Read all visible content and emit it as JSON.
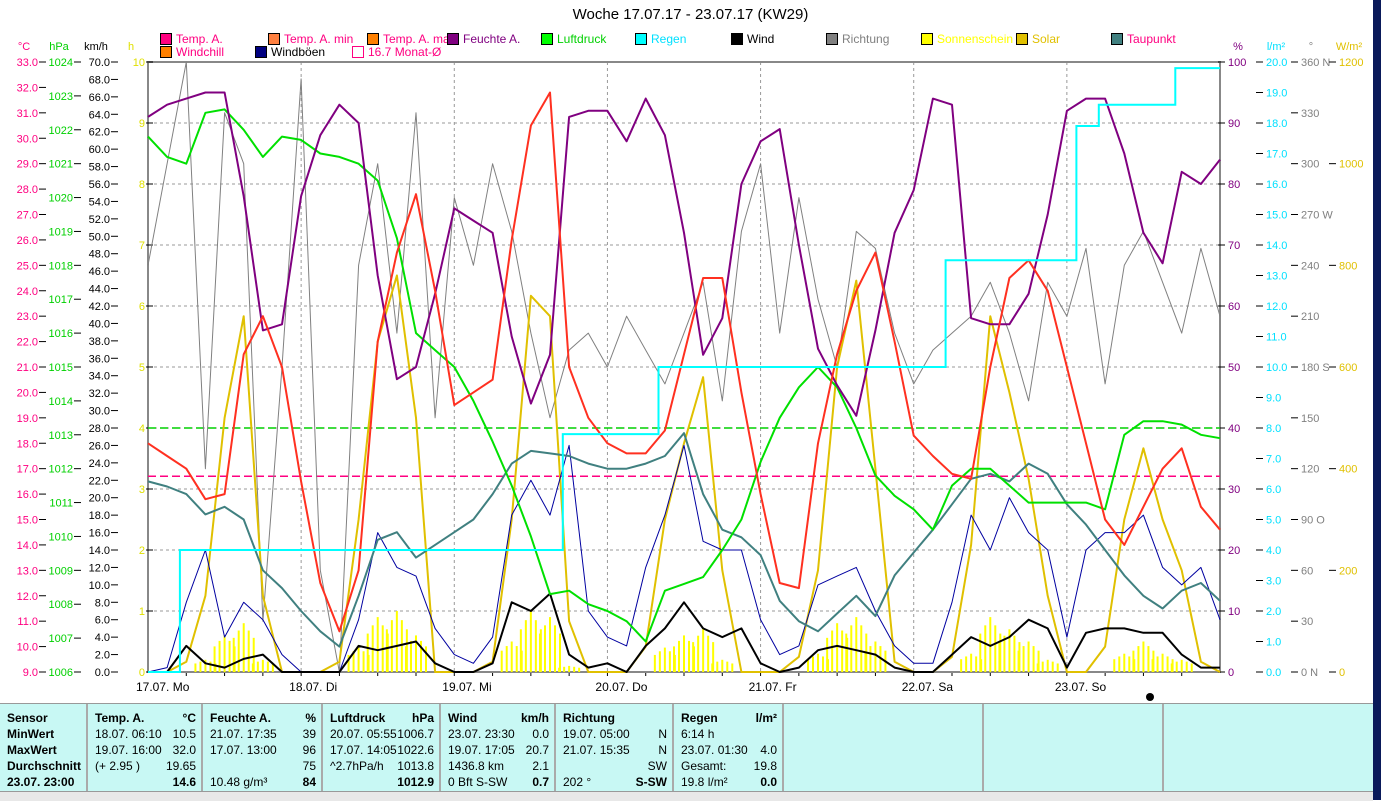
{
  "title": "Woche 17.07.17 - 23.07.17 (KW29)",
  "legend": [
    {
      "label": "Temp. A.",
      "color": "#ff0080",
      "text_color": "#ff0080"
    },
    {
      "label": "Temp. A. min",
      "color": "#ff8040",
      "text_color": "#ff0080"
    },
    {
      "label": "Temp. A. max",
      "color": "#ff8000",
      "text_color": "#ff0080"
    },
    {
      "label": "Feuchte A.",
      "color": "#800080",
      "text_color": "#800080"
    },
    {
      "label": "Luftdruck",
      "color": "#00ff00",
      "text_color": "#00d000"
    },
    {
      "label": "Regen",
      "color": "#00ffff",
      "text_color": "#00e0ff"
    },
    {
      "label": "Wind",
      "color": "#000000",
      "text_color": "#000000"
    },
    {
      "label": "Richtung",
      "color": "#808080",
      "text_color": "#808080"
    },
    {
      "label": "Sonnenschein",
      "color": "#ffff00",
      "text_color": "#ffff00"
    },
    {
      "label": "Solar",
      "color": "#e0c000",
      "text_color": "#e0c000"
    },
    {
      "label": "Taupunkt",
      "color": "#408080",
      "text_color": "#ff0080"
    },
    {
      "label": "Windchill",
      "color": "#ff8000",
      "text_color": "#ff0080"
    },
    {
      "label": "Windböen",
      "color": "#000080",
      "text_color": "#000000"
    },
    {
      "label": "16.7 Monat-Ø",
      "color": "outline",
      "text_color": "#ff0080"
    }
  ],
  "chart_data": {
    "type": "line",
    "title": "Woche 17.07.17 - 23.07.17 (KW29)",
    "x_tick_labels": [
      "17.07. Mo",
      "18.07. Di",
      "19.07. Mi",
      "20.07. Do",
      "21.07. Fr",
      "22.07. Sa",
      "23.07. So"
    ],
    "axes": {
      "temp": {
        "unit": "°C",
        "range": [
          9,
          33
        ],
        "step": 1,
        "color": "#ff0080"
      },
      "pressure": {
        "unit": "hPa",
        "range": [
          1006,
          1024
        ],
        "step": 1,
        "color": "#00d000"
      },
      "wind": {
        "unit": "km/h",
        "range": [
          0,
          70
        ],
        "step": 2,
        "color": "#000000"
      },
      "sunshine": {
        "unit": "h",
        "range": [
          0,
          10
        ],
        "step": 1,
        "color": "#e0e000"
      },
      "humidity": {
        "unit": "%",
        "range": [
          0,
          100
        ],
        "step": 10,
        "color": "#800080"
      },
      "rain": {
        "unit": "l/m²",
        "range": [
          0,
          20
        ],
        "step": 1,
        "color": "#00e0ff"
      },
      "direction": {
        "unit": "°",
        "range": [
          0,
          360
        ],
        "step": 30,
        "labels": {
          "0": "N",
          "90": "O",
          "180": "S",
          "270": "W",
          "360": "N"
        },
        "color": "#808080"
      },
      "solar": {
        "unit": "W/m²",
        "range": [
          0,
          1200
        ],
        "step": 200,
        "color": "#e0c000"
      }
    },
    "grid": true,
    "reference_lines": [
      {
        "axis": "temp",
        "value": 16.7,
        "color": "#ff0080",
        "name": "16.7 Monat-Ø"
      },
      {
        "axis": "pressure",
        "value": 1013.2,
        "color": "#00d000"
      }
    ],
    "times": [
      "17.07. 00:00",
      "17.07. 03:00",
      "17.07. 06:00",
      "17.07. 09:00",
      "17.07. 12:00",
      "17.07. 15:00",
      "17.07. 18:00",
      "17.07. 21:00",
      "18.07. 00:00",
      "18.07. 03:00",
      "18.07. 06:00",
      "18.07. 09:00",
      "18.07. 12:00",
      "18.07. 15:00",
      "18.07. 18:00",
      "18.07. 21:00",
      "19.07. 00:00",
      "19.07. 03:00",
      "19.07. 06:00",
      "19.07. 09:00",
      "19.07. 12:00",
      "19.07. 15:00",
      "19.07. 18:00",
      "19.07. 21:00",
      "20.07. 00:00",
      "20.07. 03:00",
      "20.07. 06:00",
      "20.07. 09:00",
      "20.07. 12:00",
      "20.07. 15:00",
      "20.07. 18:00",
      "20.07. 21:00",
      "21.07. 00:00",
      "21.07. 03:00",
      "21.07. 06:00",
      "21.07. 09:00",
      "21.07. 12:00",
      "21.07. 15:00",
      "21.07. 18:00",
      "21.07. 21:00",
      "22.07. 00:00",
      "22.07. 03:00",
      "22.07. 06:00",
      "22.07. 09:00",
      "22.07. 12:00",
      "22.07. 15:00",
      "22.07. 18:00",
      "22.07. 21:00",
      "23.07. 00:00",
      "23.07. 03:00",
      "23.07. 06:00",
      "23.07. 09:00",
      "23.07. 12:00",
      "23.07. 15:00",
      "23.07. 18:00",
      "23.07. 21:00",
      "24.07. 00:00"
    ],
    "series": [
      {
        "name": "Richtung",
        "axis": "direction",
        "color": "#808080",
        "width": 1,
        "values": [
          240,
          300,
          360,
          120,
          330,
          300,
          30,
          180,
          350,
          60,
          0,
          240,
          300,
          200,
          330,
          150,
          280,
          240,
          300,
          260,
          200,
          150,
          190,
          200,
          180,
          210,
          190,
          170,
          200,
          230,
          160,
          260,
          300,
          200,
          280,
          220,
          180,
          260,
          250,
          200,
          170,
          190,
          200,
          210,
          230,
          200,
          160,
          230,
          210,
          250,
          170,
          240,
          260,
          230,
          200,
          250,
          210
        ]
      },
      {
        "name": "Solar",
        "axis": "solar",
        "color": "#e0c000",
        "width": 2,
        "values": [
          0,
          0,
          20,
          150,
          500,
          700,
          150,
          0,
          0,
          0,
          20,
          300,
          650,
          780,
          500,
          0,
          0,
          0,
          20,
          300,
          740,
          700,
          100,
          0,
          0,
          0,
          50,
          300,
          450,
          580,
          200,
          0,
          0,
          0,
          30,
          200,
          600,
          770,
          400,
          20,
          0,
          0,
          30,
          250,
          700,
          550,
          380,
          150,
          0,
          0,
          50,
          300,
          440,
          300,
          200,
          20,
          0
        ]
      },
      {
        "name": "Sonnenschein",
        "axis": "sunshine",
        "color": "#ffff00",
        "bars": true,
        "values": [
          0,
          0,
          0,
          0.2,
          0.6,
          0.8,
          0.2,
          0,
          0,
          0,
          0,
          0.4,
          0.9,
          1.0,
          0.6,
          0,
          0,
          0,
          0,
          0.5,
          1.0,
          0.9,
          0.1,
          0,
          0,
          0,
          0,
          0.4,
          0.6,
          0.7,
          0.2,
          0,
          0,
          0,
          0,
          0.3,
          0.8,
          0.9,
          0.5,
          0,
          0,
          0,
          0,
          0.3,
          0.9,
          0.7,
          0.5,
          0.2,
          0,
          0,
          0,
          0.3,
          0.5,
          0.3,
          0.2,
          0,
          0
        ]
      },
      {
        "name": "Windböen",
        "axis": "wind",
        "color": "#0000a0",
        "width": 1,
        "values": [
          0,
          0.5,
          8,
          14,
          4,
          8,
          6,
          2,
          0,
          0,
          0,
          6,
          16,
          12,
          11,
          5,
          2,
          1,
          4,
          18,
          22,
          18,
          26,
          7,
          4,
          3,
          12,
          18,
          26,
          15,
          14,
          14,
          6,
          2,
          3,
          10,
          11,
          12,
          7,
          3,
          1,
          1,
          8,
          18,
          14,
          20,
          16,
          14,
          4,
          14,
          16,
          16,
          18,
          12,
          10,
          12,
          6
        ]
      },
      {
        "name": "Wind",
        "axis": "wind",
        "color": "#000000",
        "width": 2,
        "values": [
          0,
          0,
          3,
          1,
          0.5,
          1.5,
          2,
          0,
          0,
          0,
          0,
          3,
          2.5,
          3,
          3.5,
          1,
          0,
          0,
          1,
          8,
          7,
          9,
          2,
          0.5,
          1,
          0,
          3,
          5,
          8,
          5,
          4,
          5,
          1,
          0,
          0.5,
          2.5,
          3,
          2.5,
          2,
          0.5,
          0,
          0,
          2,
          4,
          3,
          4,
          6,
          5,
          0.5,
          4.5,
          5,
          5,
          4.5,
          4.5,
          2,
          0.5,
          0.5
        ]
      },
      {
        "name": "Taupunkt",
        "axis": "temp",
        "color": "#408080",
        "width": 2,
        "values": [
          16.5,
          16.3,
          16,
          15.2,
          15.5,
          15,
          13,
          12.3,
          11.4,
          10.6,
          10,
          12,
          14.2,
          14.5,
          13.5,
          14,
          14.5,
          15,
          16,
          17.2,
          17.7,
          17.6,
          17.5,
          17.2,
          17,
          17,
          17.2,
          17.5,
          18.4,
          16,
          14.6,
          14.3,
          13.6,
          11.8,
          11,
          10.6,
          11.3,
          12,
          11.2,
          12.8,
          13.7,
          14.6,
          15.6,
          16.6,
          16.8,
          16.5,
          17.2,
          16.8,
          15.6,
          14.8,
          13.8,
          12.8,
          12,
          11.5,
          12.2,
          12.5,
          11.8
        ]
      },
      {
        "name": "Luftdruck",
        "axis": "pressure",
        "color": "#00e000",
        "width": 2,
        "values": [
          1021.8,
          1021.2,
          1021,
          1022.5,
          1022.6,
          1022,
          1021.2,
          1021.8,
          1021.7,
          1021.3,
          1021.2,
          1021,
          1020.5,
          1018.8,
          1016,
          1015.5,
          1015,
          1014,
          1012.8,
          1011.5,
          1010,
          1008.3,
          1008.4,
          1008,
          1007.8,
          1007.5,
          1006.9,
          1008.4,
          1008.6,
          1008.8,
          1009.6,
          1010.5,
          1012.2,
          1013.5,
          1014.4,
          1015,
          1014.4,
          1013.2,
          1011.8,
          1011.2,
          1010.8,
          1010.2,
          1011.5,
          1012,
          1012,
          1011.5,
          1011,
          1011,
          1011,
          1011,
          1010.8,
          1013,
          1013.4,
          1013.4,
          1013.3,
          1013,
          1012.9
        ]
      },
      {
        "name": "Feuchte A.",
        "axis": "humidity",
        "color": "#800080",
        "width": 2,
        "values": [
          91,
          93,
          94,
          95,
          95,
          78,
          56,
          57,
          78,
          88,
          93,
          90,
          65,
          48,
          50,
          62,
          76,
          74,
          72,
          55,
          44,
          52,
          91,
          92,
          92,
          87,
          94,
          88,
          72,
          52,
          58,
          80,
          87,
          89,
          70,
          53,
          47,
          42,
          56,
          72,
          79,
          94,
          93,
          58,
          57,
          57,
          62,
          75,
          92,
          94,
          94,
          85,
          72,
          67,
          82,
          80,
          84
        ]
      },
      {
        "name": "Temp. A.",
        "axis": "temp",
        "color": "#ff3020",
        "width": 2,
        "values": [
          18,
          17.5,
          17,
          15.8,
          16,
          21.5,
          23,
          21,
          16.5,
          12.5,
          10.6,
          13,
          22,
          25.5,
          27.8,
          24,
          19.5,
          20,
          20.5,
          26,
          30.5,
          31.8,
          21,
          19,
          18,
          17.6,
          17.6,
          18.5,
          21.5,
          24.5,
          24.5,
          20,
          16,
          12.5,
          12.3,
          18,
          21.5,
          24,
          25.5,
          22,
          18.3,
          17.5,
          16.8,
          16.6,
          21,
          24.5,
          25.2,
          24,
          21,
          18,
          15,
          14,
          15.5,
          17,
          17.8,
          15.5,
          14.6
        ]
      }
    ],
    "rain_cumulative": {
      "name": "Regen",
      "axis": "rain",
      "color": "#00ffff",
      "steps": [
        [
          "17.07. 00:00",
          0
        ],
        [
          "17.07. 05:00",
          4.0
        ],
        [
          "19.07. 17:00",
          7.8
        ],
        [
          "20.07. 08:00",
          10.0
        ],
        [
          "22.07. 05:00",
          13.5
        ],
        [
          "23.07. 01:30",
          17.9
        ],
        [
          "23.07. 05:00",
          18.6
        ],
        [
          "23.07. 17:00",
          19.8
        ],
        [
          "24.07. 00:00",
          19.8
        ]
      ]
    }
  },
  "table": [
    {
      "rows": [
        [
          "Sensor",
          ""
        ],
        [
          "MinWert",
          ""
        ],
        [
          "MaxWert",
          ""
        ],
        [
          "Durchschnitt",
          ""
        ],
        [
          "23.07. 23:00",
          ""
        ]
      ],
      "bold_all": true
    },
    {
      "rows": [
        [
          "Temp. A.",
          "°C"
        ],
        [
          "18.07.  06:10",
          "10.5"
        ],
        [
          "19.07.  16:00",
          "32.0"
        ],
        [
          "(+ 2.95 )",
          "19.65"
        ],
        [
          "",
          "14.6"
        ]
      ]
    },
    {
      "rows": [
        [
          "Feuchte A.",
          "%"
        ],
        [
          "21.07.  17:35",
          "39"
        ],
        [
          "17.07.  13:00",
          "96"
        ],
        [
          "",
          "75"
        ],
        [
          "10.48 g/m³",
          "84"
        ]
      ]
    },
    {
      "rows": [
        [
          "Luftdruck",
          "hPa"
        ],
        [
          "20.07.  05:55",
          "1006.7"
        ],
        [
          "17.07.  14:05",
          "1022.6"
        ],
        [
          "^2.7hPa/h",
          "1013.8"
        ],
        [
          "",
          "1012.9"
        ]
      ]
    },
    {
      "rows": [
        [
          "Wind",
          "km/h"
        ],
        [
          "23.07.  23:30",
          "0.0"
        ],
        [
          "19.07.  17:05",
          "20.7"
        ],
        [
          "1436.8 km",
          "2.1"
        ],
        [
          "0 Bft S-SW",
          "0.7"
        ]
      ]
    },
    {
      "rows": [
        [
          "Richtung",
          ""
        ],
        [
          "19.07.  05:00",
          "N"
        ],
        [
          "21.07.  15:35",
          "N"
        ],
        [
          "",
          "SW"
        ],
        [
          "202 °",
          "S-SW"
        ]
      ]
    },
    {
      "rows": [
        [
          "Regen",
          "l/m²"
        ],
        [
          "6:14 h",
          ""
        ],
        [
          "23.07.  01:30",
          "4.0"
        ],
        [
          "Gesamt:",
          "19.8"
        ],
        [
          "19.8 l/m²",
          "0.0"
        ]
      ]
    },
    {
      "rows": []
    },
    {
      "rows": []
    }
  ]
}
